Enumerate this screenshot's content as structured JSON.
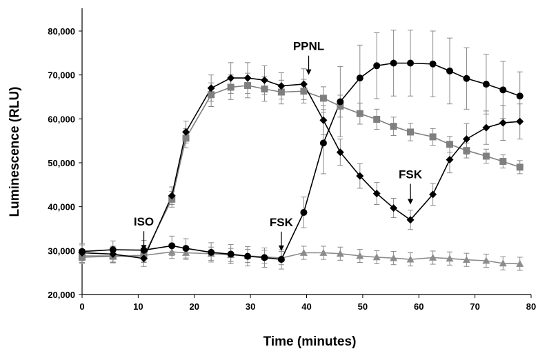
{
  "chart_data": {
    "type": "line",
    "title": "",
    "xlabel": "Time (minutes)",
    "ylabel": "Luminescence (RLU)",
    "xlim": [
      0,
      80
    ],
    "ylim": [
      20000,
      85000
    ],
    "x_ticks": [
      0,
      10,
      20,
      30,
      40,
      50,
      60,
      70,
      80
    ],
    "x_tick_labels": [
      "0",
      "10",
      "20",
      "30",
      "40",
      "50",
      "60",
      "70",
      "80"
    ],
    "y_ticks": [
      20000,
      30000,
      40000,
      50000,
      60000,
      70000,
      80000
    ],
    "y_tick_labels": [
      "20,000",
      "30,000",
      "40,000",
      "50,000",
      "60,000",
      "70,000",
      "80,000"
    ],
    "grid": false,
    "legend": "none",
    "series": [
      {
        "marker": "diamond",
        "color": "#000000",
        "x": [
          0,
          5.5,
          11,
          16,
          18.5,
          23,
          26.5,
          29.5,
          32.5,
          35.5,
          39.5,
          43,
          46,
          49.5,
          52.5,
          55.5,
          58.5,
          62.5,
          65.5,
          68.5,
          72,
          75,
          78
        ],
        "y": [
          29500,
          29200,
          28200,
          42500,
          57000,
          67000,
          69300,
          69300,
          68800,
          67500,
          67900,
          59700,
          52400,
          47000,
          43000,
          39700,
          37000,
          42800,
          50700,
          55400,
          58000,
          59100,
          59400
        ],
        "err": [
          1800,
          1800,
          1800,
          2000,
          2500,
          3000,
          3500,
          3500,
          3300,
          3000,
          3500,
          3300,
          3000,
          2800,
          2500,
          2200,
          2200,
          2500,
          3000,
          3500,
          3800,
          4000,
          4000
        ]
      },
      {
        "marker": "square",
        "color": "#7f7f7f",
        "x": [
          0,
          5.5,
          11,
          16,
          18.5,
          23,
          26.5,
          29.5,
          32.5,
          35.5,
          39.5,
          43,
          46,
          49.5,
          52.5,
          55.5,
          58.5,
          62.5,
          65.5,
          68.5,
          72,
          75,
          78
        ],
        "y": [
          28500,
          28700,
          28800,
          41700,
          55600,
          65500,
          67200,
          67600,
          66800,
          66100,
          66300,
          64700,
          62900,
          61200,
          59900,
          58300,
          57000,
          55900,
          54200,
          52800,
          51500,
          50300,
          49000
        ],
        "err": [
          1500,
          1500,
          1500,
          1800,
          2200,
          2700,
          2800,
          2800,
          2800,
          2700,
          2700,
          2600,
          2500,
          2400,
          2300,
          2100,
          2000,
          1900,
          1800,
          1700,
          1600,
          1500,
          1500
        ]
      },
      {
        "marker": "circle",
        "color": "#000000",
        "x": [
          0,
          5.5,
          11,
          16,
          18.5,
          23,
          26.5,
          29.5,
          32.5,
          35.5,
          39.5,
          43,
          46,
          49.5,
          52.5,
          55.5,
          58.5,
          62.5,
          65.5,
          68.5,
          72,
          75,
          78
        ],
        "y": [
          29800,
          30200,
          30100,
          31100,
          30500,
          29600,
          29200,
          28700,
          28400,
          28000,
          38700,
          54500,
          63900,
          69300,
          72100,
          72700,
          72700,
          72500,
          70900,
          69200,
          67900,
          66600,
          65200
        ],
        "err": [
          1800,
          2000,
          2200,
          2200,
          2200,
          2200,
          2200,
          2200,
          2200,
          2200,
          3500,
          7000,
          8000,
          7500,
          7500,
          7500,
          7500,
          7500,
          7500,
          7000,
          6800,
          6500,
          5500
        ]
      },
      {
        "marker": "triangle",
        "color": "#8c8c8c",
        "x": [
          0,
          5.5,
          11,
          16,
          18.5,
          23,
          26.5,
          29.5,
          32.5,
          35.5,
          39.5,
          43,
          46,
          49.5,
          52.5,
          55.5,
          58.5,
          62.5,
          65.5,
          68.5,
          72,
          75,
          78
        ],
        "y": [
          28800,
          28800,
          28900,
          29700,
          29500,
          29300,
          29000,
          28800,
          28600,
          28300,
          29500,
          29500,
          29300,
          28800,
          28500,
          28300,
          28000,
          28400,
          28200,
          27900,
          27700,
          27100,
          27000
        ],
        "err": [
          1500,
          1500,
          1500,
          1500,
          1500,
          1500,
          1500,
          1500,
          1500,
          1500,
          1500,
          1500,
          1500,
          1500,
          1500,
          1500,
          1500,
          1500,
          1500,
          1500,
          1500,
          1500,
          1500
        ]
      }
    ],
    "annotations": [
      {
        "text": "ISO",
        "x": 11,
        "y": 28200
      },
      {
        "text": "FSK",
        "x": 35.5,
        "y": 28000
      },
      {
        "text": "PPNL",
        "x": 40,
        "y": 68000
      },
      {
        "text": "FSK",
        "x": 58.5,
        "y": 37000
      }
    ]
  }
}
